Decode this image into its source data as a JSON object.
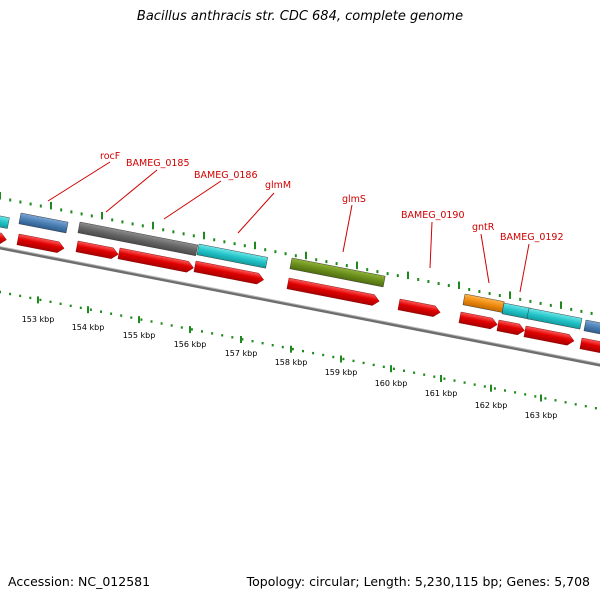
{
  "title": "Bacillus anthracis str. CDC 684, complete genome",
  "footer": {
    "accession": "Accession: NC_012581",
    "summary": "Topology: circular; Length: 5,230,115 bp; Genes: 5,708"
  },
  "colors": {
    "backbone": "#7a7a7a",
    "ticks": "#1e8a1e",
    "cds": "#e00000",
    "label": "#d00000",
    "cyan": "#22c4c8",
    "gray": "#686868",
    "olive": "#6a8e1c",
    "orange": "#ee8a10",
    "steel": "#4a7eb2"
  },
  "gene_labels": [
    {
      "text": "rocF"
    },
    {
      "text": "BAMEG_0185"
    },
    {
      "text": "BAMEG_0186"
    },
    {
      "text": "glmM"
    },
    {
      "text": "glmS"
    },
    {
      "text": "BAMEG_0190"
    },
    {
      "text": "gntR"
    },
    {
      "text": "BAMEG_0192"
    }
  ],
  "scale_labels": [
    "153 kbp",
    "154 kbp",
    "155 kbp",
    "156 kbp",
    "157 kbp",
    "158 kbp",
    "159 kbp",
    "160 kbp",
    "161 kbp",
    "162 kbp",
    "163 kbp"
  ]
}
